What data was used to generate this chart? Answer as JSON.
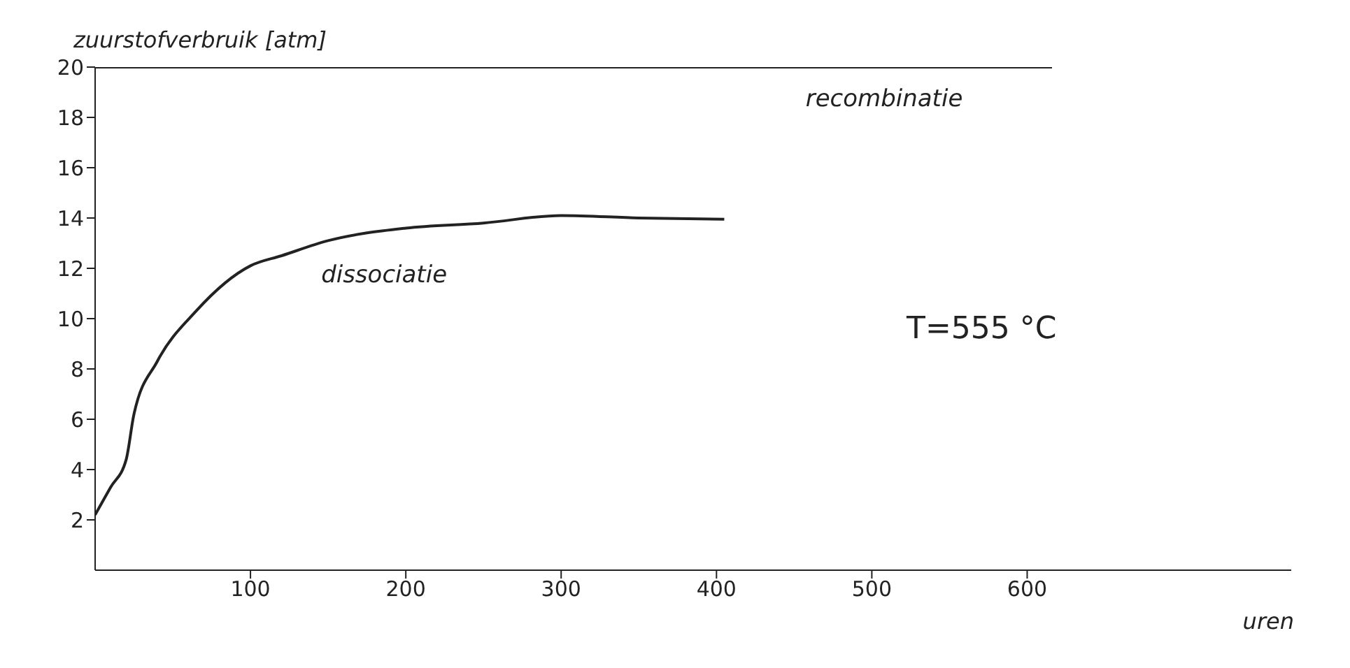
{
  "chart_data": {
    "type": "line",
    "ylabel": "zuurstofverbruik [atm]",
    "xlabel": "uren",
    "xlim": [
      0,
      770
    ],
    "xticks": [
      100,
      200,
      300,
      400,
      500,
      600
    ],
    "ylim": [
      0,
      20
    ],
    "yticks": [
      2,
      4,
      6,
      8,
      10,
      12,
      14,
      16,
      18,
      20
    ],
    "series": [
      {
        "name": "dissociatie",
        "color": "#222222",
        "x": [
          0,
          10,
          20,
          25,
          40,
          65,
          100,
          120,
          150,
          200,
          250,
          300,
          350,
          405
        ],
        "values": [
          2.2,
          3.3,
          4.4,
          6.2,
          8.3,
          10.3,
          12.1,
          12.5,
          13.1,
          13.6,
          13.8,
          14.1,
          14,
          13.95
        ]
      },
      {
        "name": "recombinatie",
        "color": "#222222",
        "x": [
          0,
          616
        ],
        "values": [
          20,
          20
        ]
      }
    ],
    "annotations": [
      "T=555 °C"
    ],
    "grid": false,
    "marker": "none",
    "line_style": "solid"
  }
}
